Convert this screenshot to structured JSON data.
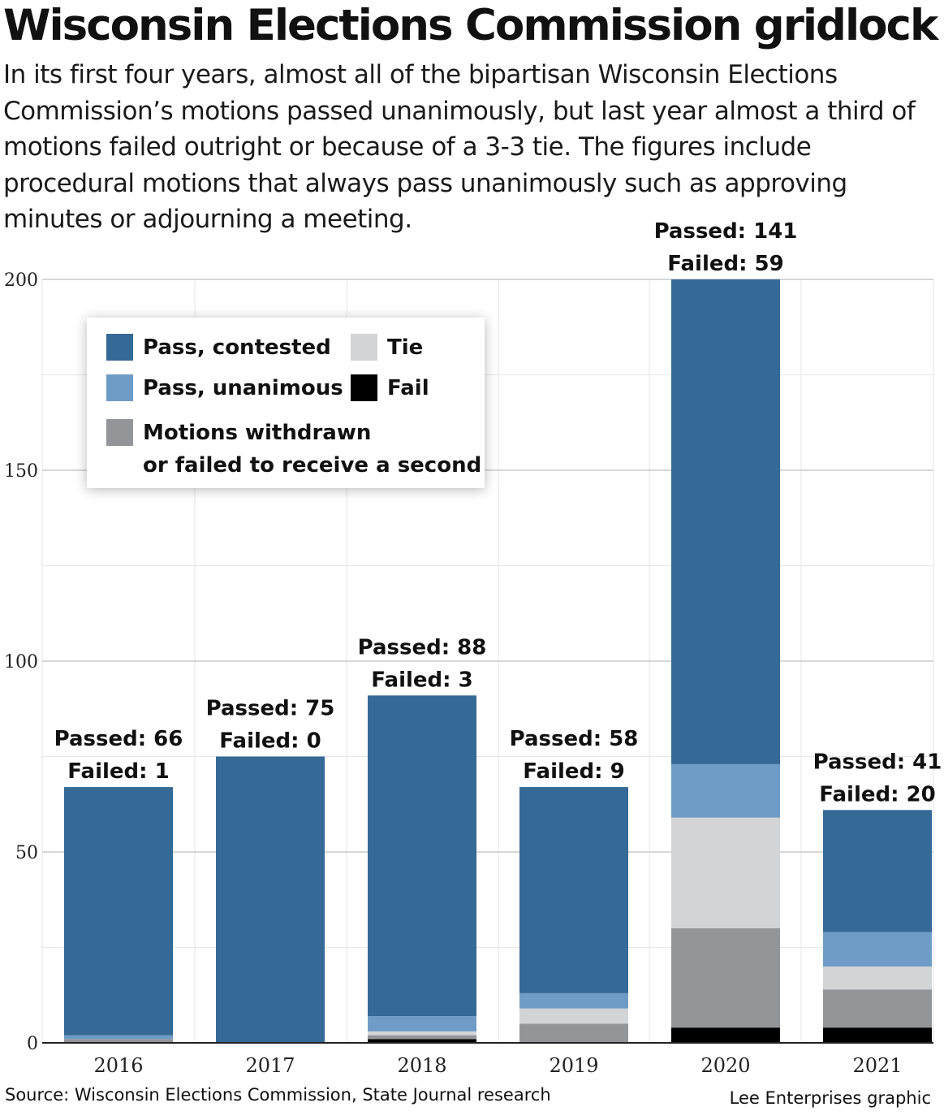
{
  "title": "Wisconsin Elections Commission gridlock",
  "subtitle": "In its first four years, almost all of the bipartisan Wisconsin Elections Commission’s motions passed unanimously, but last year almost a third of motions failed outright or because of a 3-3 tie. The figures include procedural motions that always pass unanimously such as approving minutes or adjourning a meeting.",
  "source": "Source: Wisconsin Elections Commission, State Journal research",
  "credit": "Lee Enterprises graphic",
  "legend": [
    {
      "key": "pass_contested",
      "label": "Pass, contested",
      "color": "#356996"
    },
    {
      "key": "tie",
      "label": "Tie",
      "color": "#d3d4d6"
    },
    {
      "key": "pass_unanimous",
      "label": "Pass, unanimous",
      "color": "#6f9cc6"
    },
    {
      "key": "fail",
      "label": "Fail",
      "color": "#000000"
    },
    {
      "key": "withdrawn",
      "label": "Motions withdrawn or failed to receive a second",
      "label_lines": [
        "Motions withdrawn",
        "or failed to receive a second"
      ],
      "color": "#939598"
    }
  ],
  "chart_data": {
    "type": "bar",
    "stacked": true,
    "categories": [
      "2016",
      "2017",
      "2018",
      "2019",
      "2020",
      "2021"
    ],
    "ylim": [
      0,
      200
    ],
    "yticks": [
      0,
      50,
      100,
      150,
      200
    ],
    "grid": true,
    "legend_position": "top-left",
    "series": [
      {
        "key": "fail",
        "name": "Fail",
        "color": "#000000",
        "values": [
          0,
          0,
          1,
          0,
          4,
          4
        ]
      },
      {
        "key": "withdrawn",
        "name": "Motions withdrawn or failed to receive a second",
        "color": "#939598",
        "values": [
          1,
          0,
          1,
          5,
          26,
          10
        ]
      },
      {
        "key": "tie",
        "name": "Tie",
        "color": "#d3d4d6",
        "values": [
          0,
          0,
          1,
          4,
          29,
          6
        ]
      },
      {
        "key": "pass_unanimous",
        "name": "Pass, unanimous",
        "color": "#6f9cc6",
        "values": [
          1,
          0,
          4,
          4,
          14,
          9
        ]
      },
      {
        "key": "pass_contested",
        "name": "Pass, contested",
        "color": "#356996",
        "values": [
          65,
          75,
          84,
          54,
          127,
          32
        ]
      }
    ],
    "bar_labels": [
      {
        "category": "2016",
        "passed": "Passed: 66",
        "failed": "Failed: 1"
      },
      {
        "category": "2017",
        "passed": "Passed: 75",
        "failed": "Failed: 0"
      },
      {
        "category": "2018",
        "passed": "Passed: 88",
        "failed": "Failed: 3"
      },
      {
        "category": "2019",
        "passed": "Passed: 58",
        "failed": "Failed: 9"
      },
      {
        "category": "2020",
        "passed": "Passed: 141",
        "failed": "Failed: 59"
      },
      {
        "category": "2021",
        "passed": "Passed: 41",
        "failed": "Failed: 20"
      }
    ]
  }
}
